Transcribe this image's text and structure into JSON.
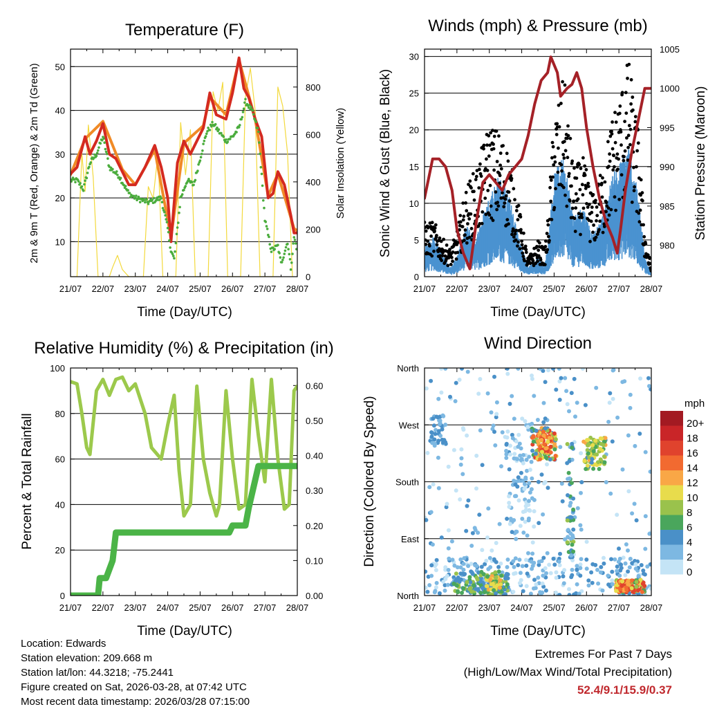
{
  "chart_data": [
    {
      "type": "line",
      "title": "Temperature (F)",
      "xlabel": "Time (Day/UTC)",
      "ylabel": "2m & 9m T (Red, Orange) & 2m Td (Green)",
      "y2label": "Solar Insolation (Yellow)",
      "ylim": [
        2,
        54
      ],
      "y2lim": [
        0,
        960
      ],
      "yticks": [
        10,
        20,
        30,
        40,
        50
      ],
      "y2ticks": [
        0,
        200,
        400,
        600,
        800
      ],
      "xlim": [
        0,
        7
      ],
      "xticks": [
        "21/07",
        "22/07",
        "23/07",
        "24/07",
        "25/07",
        "26/07",
        "27/07",
        "28/07"
      ],
      "grid": true,
      "series": [
        {
          "name": "2m T",
          "color": "#d42a20",
          "x": [
            0,
            0.2,
            0.45,
            0.6,
            0.8,
            1.0,
            1.2,
            1.4,
            1.6,
            1.8,
            2.0,
            2.3,
            2.6,
            2.8,
            3.0,
            3.1,
            3.3,
            3.5,
            3.7,
            3.9,
            4.1,
            4.3,
            4.5,
            4.8,
            5.0,
            5.2,
            5.35,
            5.5,
            5.7,
            5.9,
            6.1,
            6.25,
            6.4,
            6.6,
            6.8,
            6.9,
            7.0
          ],
          "values": [
            25.5,
            27,
            34,
            30,
            33,
            37,
            30,
            29,
            26,
            23,
            23,
            27,
            32,
            27,
            20,
            10,
            28,
            33,
            30,
            33,
            36,
            44,
            39,
            38,
            44,
            52,
            45,
            43,
            38,
            34,
            20,
            21,
            26,
            23,
            16,
            12,
            12
          ]
        },
        {
          "name": "9m T",
          "color": "#f08a26",
          "x": [
            0,
            0.45,
            1.0,
            1.6,
            2.0,
            2.6,
            3.1,
            3.5,
            4.1,
            4.3,
            4.8,
            5.2,
            5.7,
            6.1,
            6.4,
            6.9,
            7.0
          ],
          "values": [
            25.3,
            33.5,
            37.5,
            26.5,
            23,
            31,
            11,
            32.5,
            36.5,
            43,
            39,
            51.5,
            38,
            20.5,
            25.5,
            13,
            12.5
          ]
        },
        {
          "name": "2m Td",
          "color": "#4aac3c",
          "x": [
            0,
            0.2,
            0.4,
            0.6,
            0.8,
            1.0,
            1.2,
            1.5,
            1.8,
            2.0,
            2.4,
            2.8,
            3.0,
            3.1,
            3.2,
            3.4,
            3.6,
            3.8,
            4.0,
            4.2,
            4.4,
            4.6,
            4.8,
            5.0,
            5.2,
            5.4,
            5.6,
            5.8,
            6.0,
            6.2,
            6.4,
            6.5,
            6.7,
            6.8,
            6.9,
            7.0
          ],
          "values": [
            24,
            24,
            22,
            28,
            30,
            34,
            27,
            25,
            21,
            20,
            19,
            20,
            13,
            8,
            6,
            20,
            24,
            23,
            29,
            35,
            37,
            35,
            33,
            34,
            36,
            42,
            40,
            35,
            15,
            8,
            9,
            5,
            10,
            4,
            11,
            8
          ]
        },
        {
          "name": "Solar Insolation",
          "axis": "y2",
          "color": "#f3d93c",
          "x": [
            0,
            0.2,
            0.35,
            0.45,
            0.55,
            0.7,
            0.85,
            1.2,
            1.3,
            1.45,
            1.6,
            1.8,
            2.25,
            2.4,
            2.55,
            2.7,
            2.85,
            3.25,
            3.4,
            3.55,
            3.7,
            3.85,
            4.25,
            4.4,
            4.55,
            4.7,
            4.85,
            5.25,
            5.4,
            5.55,
            5.7,
            5.85,
            6.25,
            6.4,
            6.55,
            6.7,
            6.85
          ],
          "values": [
            0,
            0,
            520,
            360,
            640,
            420,
            0,
            0,
            40,
            90,
            30,
            0,
            0,
            380,
            330,
            520,
            0,
            0,
            650,
            430,
            620,
            0,
            0,
            780,
            700,
            820,
            0,
            0,
            760,
            880,
            700,
            0,
            0,
            800,
            720,
            520,
            0
          ]
        }
      ]
    },
    {
      "type": "scatter",
      "title": "Winds (mph) & Pressure (mb)",
      "xlabel": "Time (Day/UTC)",
      "ylabel": "Sonic Wind & Gust (Blue, Black)",
      "y2label": "Station Pressure (Maroon)",
      "ylim": [
        0,
        31
      ],
      "y2lim": [
        976,
        1005
      ],
      "yticks": [
        0,
        5,
        10,
        15,
        20,
        25,
        30
      ],
      "y2ticks": [
        980,
        985,
        990,
        995,
        1000,
        1005
      ],
      "xlim": [
        0,
        7
      ],
      "xticks": [
        "21/07",
        "22/07",
        "23/07",
        "24/07",
        "25/07",
        "26/07",
        "27/07",
        "28/07"
      ],
      "grid": true,
      "series": [
        {
          "name": "Wind",
          "color": "#4a92d0",
          "x": [
            0,
            0.3,
            0.6,
            0.8,
            1.0,
            1.3,
            1.6,
            2.0,
            2.3,
            2.6,
            3.0,
            3.2,
            3.5,
            3.7,
            3.8,
            4.0,
            4.3,
            4.6,
            4.9,
            5.2,
            5.5,
            5.8,
            6.0,
            6.3,
            6.6,
            6.8,
            7.0
          ],
          "values": [
            3,
            4,
            2,
            1,
            2,
            5,
            4,
            8,
            10,
            8,
            3,
            1,
            2,
            1,
            3,
            10,
            12,
            6,
            7,
            4,
            6,
            10,
            11,
            13,
            8,
            2,
            0.5
          ]
        },
        {
          "name": "Gust",
          "color": "#000000",
          "x": [
            0,
            0.3,
            0.6,
            0.8,
            1.0,
            1.3,
            1.6,
            2.0,
            2.3,
            2.6,
            3.0,
            3.2,
            3.5,
            3.7,
            3.8,
            4.0,
            4.3,
            4.6,
            4.9,
            5.2,
            5.5,
            5.8,
            6.0,
            6.3,
            6.6,
            6.8,
            7.0
          ],
          "values": [
            6,
            6,
            4,
            3,
            5,
            10,
            12,
            17,
            16,
            14,
            6,
            2,
            4,
            3,
            6,
            18,
            22,
            12,
            13,
            9,
            12,
            18,
            20,
            24,
            16,
            5,
            1
          ]
        },
        {
          "name": "Station Pressure",
          "axis": "y2",
          "color": "#a52127",
          "x": [
            0,
            0.1,
            0.25,
            0.45,
            0.65,
            0.85,
            1.0,
            1.2,
            1.4,
            1.6,
            1.8,
            2.0,
            2.2,
            2.4,
            2.6,
            2.8,
            3.0,
            3.2,
            3.4,
            3.6,
            3.8,
            3.9,
            4.1,
            4.2,
            4.4,
            4.55,
            4.7,
            4.85,
            5.0,
            5.2,
            5.4,
            5.6,
            5.8,
            5.95,
            6.05,
            6.2,
            6.4,
            6.6,
            6.8,
            7.0
          ],
          "values": [
            986,
            988,
            991,
            991,
            990,
            987,
            982,
            979,
            977,
            983,
            988,
            989,
            988,
            987,
            989,
            990,
            991,
            994,
            998,
            1001,
            1002,
            1004,
            1002,
            999,
            1000,
            1000.5,
            1002,
            1000,
            995,
            990,
            986,
            983,
            981,
            979,
            982,
            987,
            992,
            996,
            1000,
            1000
          ]
        }
      ]
    },
    {
      "type": "line",
      "title": "Relative Humidity (%) & Precipitation (in)",
      "xlabel": "Time (Day/UTC)",
      "ylabel": "Percent & Total Rainfall",
      "ylim": [
        0,
        100
      ],
      "y2lim": [
        0,
        0.65
      ],
      "yticks": [
        0,
        20,
        40,
        60,
        80,
        100
      ],
      "y2ticks": [
        "0.00",
        "0.10",
        "0.20",
        "0.30",
        "0.40",
        "0.50",
        "0.60"
      ],
      "xlim": [
        0,
        7
      ],
      "xticks": [
        "21/07",
        "22/07",
        "23/07",
        "24/07",
        "25/07",
        "26/07",
        "27/07",
        "28/07"
      ],
      "grid": true,
      "series": [
        {
          "name": "Relative Humidity",
          "color": "#9cc94c",
          "x": [
            0,
            0.2,
            0.35,
            0.5,
            0.6,
            0.8,
            1.0,
            1.2,
            1.4,
            1.6,
            1.8,
            2.0,
            2.3,
            2.5,
            2.8,
            3.0,
            3.2,
            3.35,
            3.5,
            3.7,
            3.9,
            4.1,
            4.3,
            4.5,
            4.6,
            4.8,
            5.0,
            5.2,
            5.4,
            5.6,
            5.8,
            6.0,
            6.2,
            6.4,
            6.6,
            6.75,
            6.9,
            7.0
          ],
          "values": [
            94,
            93,
            80,
            65,
            62,
            90,
            95,
            88,
            95,
            96,
            90,
            93,
            80,
            65,
            60,
            75,
            88,
            55,
            35,
            40,
            92,
            60,
            45,
            35,
            40,
            90,
            60,
            38,
            40,
            95,
            70,
            50,
            95,
            60,
            38,
            40,
            90,
            92
          ]
        },
        {
          "name": "Total Precipitation",
          "axis": "y2",
          "color": "#4bb447",
          "x": [
            0,
            0.85,
            0.9,
            1.1,
            1.3,
            1.4,
            1.5,
            3.5,
            4.9,
            5.0,
            5.4,
            5.5,
            5.8,
            6.0,
            7.0
          ],
          "values": [
            0,
            0,
            0.05,
            0.05,
            0.1,
            0.18,
            0.18,
            0.18,
            0.18,
            0.2,
            0.2,
            0.25,
            0.37,
            0.37,
            0.37
          ]
        }
      ]
    },
    {
      "type": "scatter",
      "title": "Wind Direction",
      "xlabel": "Time (Day/UTC)",
      "ylabel": "Direction (Colored By Speed)",
      "yticks": [
        "North",
        "East",
        "South",
        "West",
        "North"
      ],
      "xlim": [
        0,
        7
      ],
      "xticks": [
        "21/07",
        "22/07",
        "23/07",
        "24/07",
        "25/07",
        "26/07",
        "27/07",
        "28/07"
      ],
      "grid": true,
      "legend": {
        "title": "mph",
        "labels": [
          "20+",
          "18",
          "16",
          "14",
          "12",
          "10",
          "8",
          "6",
          "4",
          "2",
          "0"
        ],
        "colors": [
          "#a31a22",
          "#c92528",
          "#e0432d",
          "#f26a30",
          "#f9a746",
          "#e8dc4c",
          "#9ac24c",
          "#4aa65c",
          "#4a90c8",
          "#7db8e2",
          "#c4e4f6"
        ]
      }
    }
  ],
  "info": {
    "location": "Location: Edwards",
    "elevation": "Station elevation: 209.668 m",
    "latlon": "Station lat/lon: 44.3218; -75.2441",
    "created": "Figure created on Sat, 2026-03-28, at 07:42 UTC",
    "recent": "Most recent data timestamp: 2026/03/28 07:15:00"
  },
  "extremes": {
    "title": "Extremes For Past 7 Days",
    "subtitle": "(High/Low/Max Wind/Total Precipitation)",
    "values": "52.4/9.1/15.9/0.37"
  }
}
